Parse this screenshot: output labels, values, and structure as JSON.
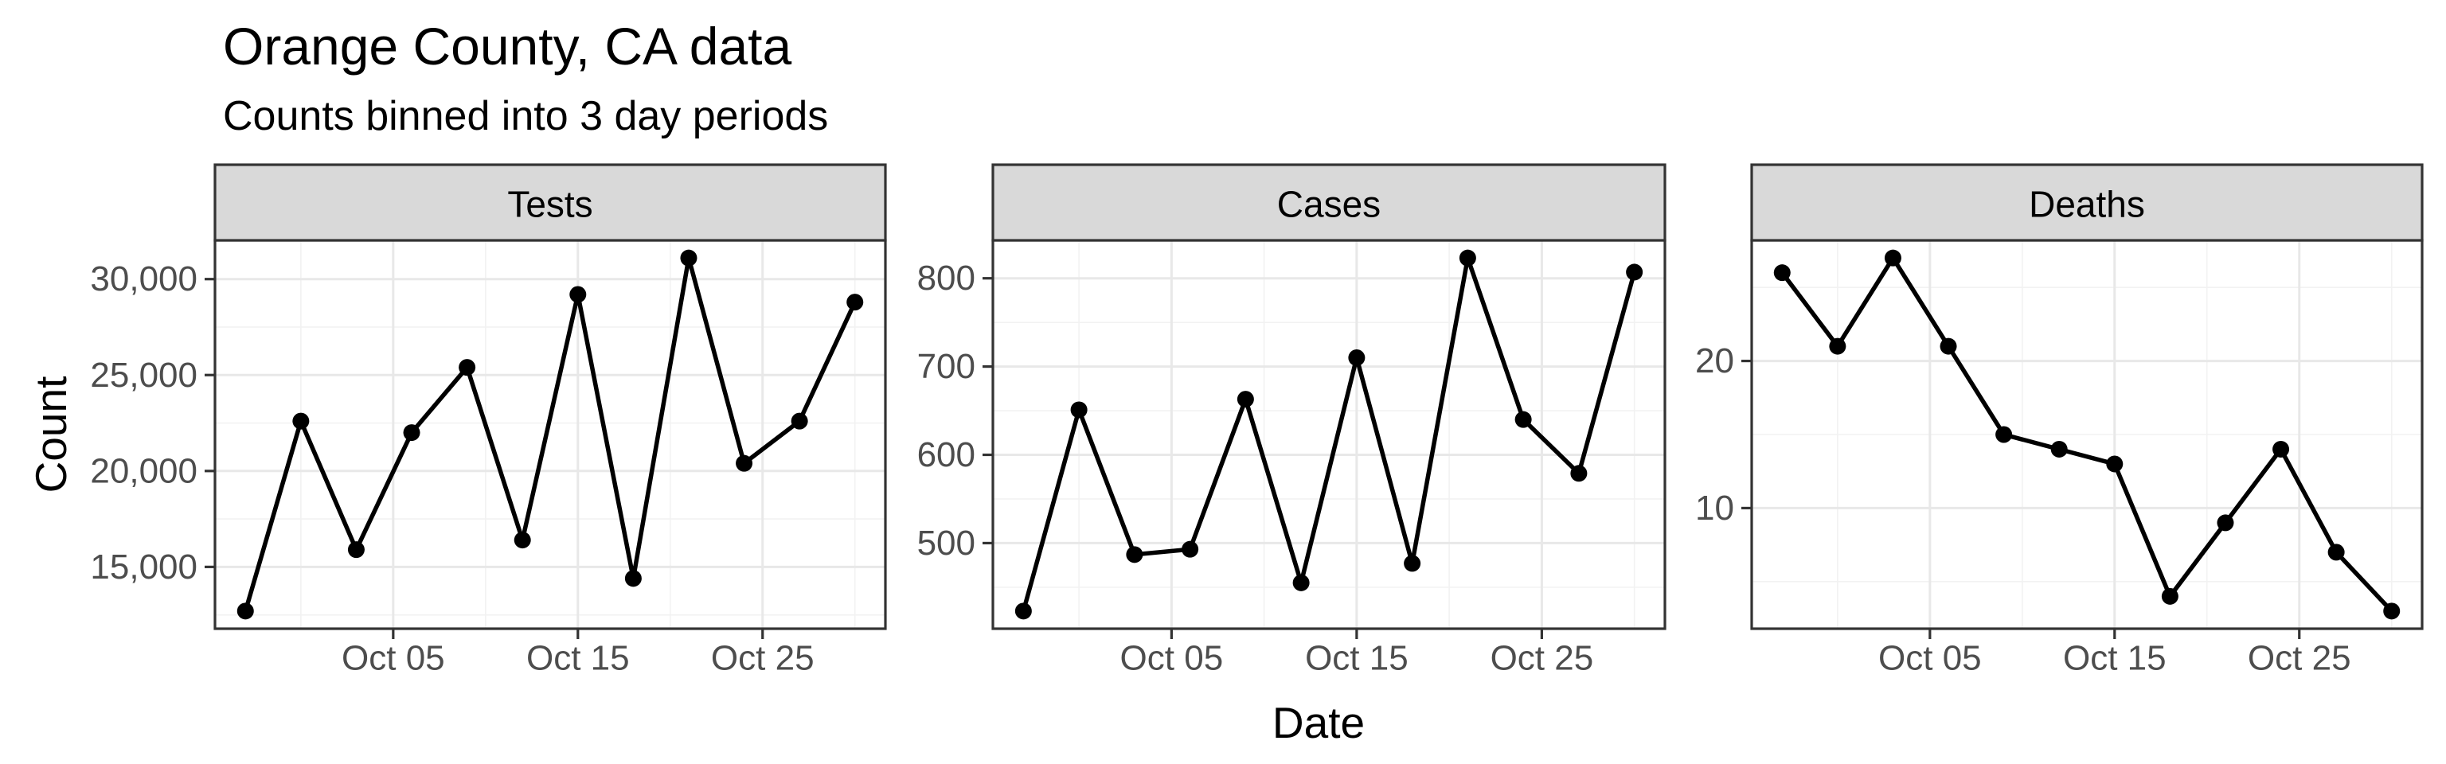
{
  "chart_data": {
    "type": "line",
    "title": "Orange County, CA data",
    "subtitle": "Counts binned into 3 day periods",
    "xlabel": "Date",
    "ylabel": "Count",
    "legend_position": "none",
    "grid": "on",
    "facets": [
      "Tests",
      "Cases",
      "Deaths"
    ],
    "x": {
      "dates": [
        "Sep 27",
        "Sep 30",
        "Oct 03",
        "Oct 06",
        "Oct 09",
        "Oct 12",
        "Oct 15",
        "Oct 18",
        "Oct 21",
        "Oct 24",
        "Oct 27",
        "Oct 30"
      ],
      "days": [
        0,
        3,
        6,
        9,
        12,
        15,
        18,
        21,
        24,
        27,
        30,
        33
      ],
      "tick_labels": [
        "Oct 05",
        "Oct 15",
        "Oct 25"
      ],
      "tick_days": [
        8,
        18,
        28
      ],
      "minor_days": [
        3,
        13,
        23,
        33
      ],
      "lim": [
        -1.65,
        34.65
      ]
    },
    "panels": [
      {
        "label": "Tests",
        "values": [
          12700,
          22600,
          15900,
          22000,
          25400,
          16400,
          29200,
          14400,
          31100,
          20400,
          22600,
          28800
        ],
        "yticks": [
          15000,
          20000,
          25000,
          30000
        ],
        "ytick_labels": [
          "15,000",
          "20,000",
          "25,000",
          "30,000"
        ],
        "yminor": [
          12500,
          17500,
          22500,
          27500,
          32500
        ],
        "ylim": [
          11780,
          32020
        ]
      },
      {
        "label": "Cases",
        "values": [
          423,
          651,
          487,
          493,
          663,
          455,
          710,
          477,
          823,
          640,
          579,
          807
        ],
        "yticks": [
          500,
          600,
          700,
          800
        ],
        "ytick_labels": [
          "500",
          "600",
          "700",
          "800"
        ],
        "yminor": [
          450,
          550,
          650,
          750,
          850
        ],
        "ylim": [
          403,
          843
        ]
      },
      {
        "label": "Deaths",
        "values": [
          26,
          21,
          27,
          21,
          15,
          14,
          13,
          4,
          9,
          14,
          7,
          3
        ],
        "yticks": [
          10,
          20
        ],
        "ytick_labels": [
          "10",
          "20"
        ],
        "yminor": [
          5,
          15,
          25
        ],
        "ylim": [
          1.8,
          28.2
        ]
      }
    ],
    "colors": {
      "series": "#000000",
      "strip_fill": "#D9D9D9",
      "panel_border": "#333333",
      "grid_major": "#E8E8E8",
      "grid_minor": "#F2F2F2",
      "tick_label": "#4D4D4D",
      "text": "#000000",
      "background": "#FFFFFF"
    }
  }
}
